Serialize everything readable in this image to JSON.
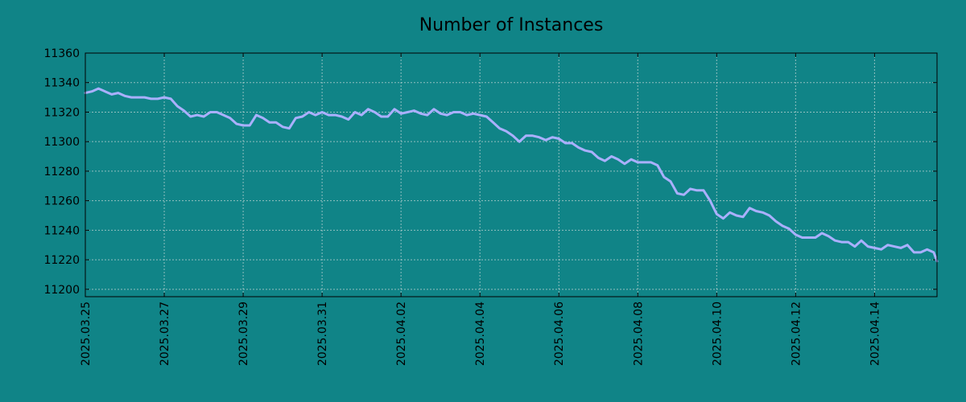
{
  "chart_data": {
    "type": "line",
    "title": "Number of Instances",
    "xlabel": "",
    "ylabel": "",
    "grid": true,
    "xlim": [
      "2025-03-25",
      "2025-04-15T14:00"
    ],
    "ylim": [
      11195,
      11360
    ],
    "yticks": [
      11200,
      11220,
      11240,
      11260,
      11280,
      11300,
      11320,
      11340,
      11360
    ],
    "xticks": [
      "2025.03.25",
      "2025.03.27",
      "2025.03.29",
      "2025.03.31",
      "2025.04.02",
      "2025.04.04",
      "2025.04.06",
      "2025.04.08",
      "2025.04.10",
      "2025.04.12",
      "2025.04.14"
    ],
    "series": [
      {
        "name": "",
        "color": "#aab0ff",
        "x": [
          "2025-03-25T00:00",
          "2025-03-25T04:00",
          "2025-03-25T08:00",
          "2025-03-25T12:00",
          "2025-03-25T16:00",
          "2025-03-25T20:00",
          "2025-03-26T00:00",
          "2025-03-26T04:00",
          "2025-03-26T08:00",
          "2025-03-26T12:00",
          "2025-03-26T16:00",
          "2025-03-26T20:00",
          "2025-03-27T00:00",
          "2025-03-27T04:00",
          "2025-03-27T08:00",
          "2025-03-27T12:00",
          "2025-03-27T16:00",
          "2025-03-27T20:00",
          "2025-03-28T00:00",
          "2025-03-28T04:00",
          "2025-03-28T08:00",
          "2025-03-28T12:00",
          "2025-03-28T16:00",
          "2025-03-28T20:00",
          "2025-03-29T00:00",
          "2025-03-29T04:00",
          "2025-03-29T08:00",
          "2025-03-29T12:00",
          "2025-03-29T16:00",
          "2025-03-29T20:00",
          "2025-03-30T00:00",
          "2025-03-30T04:00",
          "2025-03-30T08:00",
          "2025-03-30T12:00",
          "2025-03-30T16:00",
          "2025-03-30T20:00",
          "2025-03-31T00:00",
          "2025-03-31T04:00",
          "2025-03-31T08:00",
          "2025-03-31T12:00",
          "2025-03-31T16:00",
          "2025-03-31T20:00",
          "2025-04-01T00:00",
          "2025-04-01T04:00",
          "2025-04-01T08:00",
          "2025-04-01T12:00",
          "2025-04-01T16:00",
          "2025-04-01T20:00",
          "2025-04-02T00:00",
          "2025-04-02T04:00",
          "2025-04-02T08:00",
          "2025-04-02T12:00",
          "2025-04-02T16:00",
          "2025-04-02T20:00",
          "2025-04-03T00:00",
          "2025-04-03T04:00",
          "2025-04-03T08:00",
          "2025-04-03T12:00",
          "2025-04-03T16:00",
          "2025-04-03T20:00",
          "2025-04-04T00:00",
          "2025-04-04T04:00",
          "2025-04-04T08:00",
          "2025-04-04T12:00",
          "2025-04-04T16:00",
          "2025-04-04T20:00",
          "2025-04-05T00:00",
          "2025-04-05T04:00",
          "2025-04-05T08:00",
          "2025-04-05T12:00",
          "2025-04-05T16:00",
          "2025-04-05T20:00",
          "2025-04-06T00:00",
          "2025-04-06T04:00",
          "2025-04-06T08:00",
          "2025-04-06T12:00",
          "2025-04-06T16:00",
          "2025-04-06T20:00",
          "2025-04-07T00:00",
          "2025-04-07T04:00",
          "2025-04-07T08:00",
          "2025-04-07T12:00",
          "2025-04-07T16:00",
          "2025-04-07T20:00",
          "2025-04-08T00:00",
          "2025-04-08T04:00",
          "2025-04-08T08:00",
          "2025-04-08T12:00",
          "2025-04-08T16:00",
          "2025-04-08T20:00",
          "2025-04-09T00:00",
          "2025-04-09T04:00",
          "2025-04-09T08:00",
          "2025-04-09T12:00",
          "2025-04-09T16:00",
          "2025-04-09T20:00",
          "2025-04-10T00:00",
          "2025-04-10T04:00",
          "2025-04-10T08:00",
          "2025-04-10T12:00",
          "2025-04-10T16:00",
          "2025-04-10T20:00",
          "2025-04-11T00:00",
          "2025-04-11T04:00",
          "2025-04-11T08:00",
          "2025-04-11T12:00",
          "2025-04-11T16:00",
          "2025-04-11T20:00",
          "2025-04-12T00:00",
          "2025-04-12T04:00",
          "2025-04-12T08:00",
          "2025-04-12T12:00",
          "2025-04-12T16:00",
          "2025-04-12T20:00",
          "2025-04-13T00:00",
          "2025-04-13T04:00",
          "2025-04-13T08:00",
          "2025-04-13T12:00",
          "2025-04-13T16:00",
          "2025-04-13T20:00",
          "2025-04-14T00:00",
          "2025-04-14T04:00",
          "2025-04-14T08:00",
          "2025-04-14T12:00",
          "2025-04-14T16:00",
          "2025-04-14T20:00",
          "2025-04-15T00:00",
          "2025-04-15T04:00",
          "2025-04-15T08:00",
          "2025-04-15T12:00",
          "2025-04-15T14:00"
        ],
        "y": [
          11333,
          11334,
          11336,
          11334,
          11332,
          11333,
          11331,
          11330,
          11330,
          11330,
          11329,
          11329,
          11330,
          11329,
          11324,
          11321,
          11317,
          11318,
          11317,
          11320,
          11320,
          11318,
          11316,
          11312,
          11311,
          11311,
          11318,
          11316,
          11313,
          11313,
          11310,
          11309,
          11316,
          11317,
          11320,
          11318,
          11320,
          11318,
          11318,
          11317,
          11315,
          11320,
          11318,
          11322,
          11320,
          11317,
          11317,
          11322,
          11319,
          11320,
          11321,
          11319,
          11318,
          11322,
          11319,
          11318,
          11320,
          11320,
          11318,
          11319,
          11318,
          11317,
          11313,
          11309,
          11307,
          11304,
          11300,
          11304,
          11304,
          11303,
          11301,
          11303,
          11302,
          11299,
          11299,
          11296,
          11294,
          11293,
          11289,
          11287,
          11290,
          11288,
          11285,
          11288,
          11286,
          11286,
          11286,
          11284,
          11276,
          11273,
          11265,
          11264,
          11268,
          11267,
          11267,
          11260,
          11251,
          11248,
          11252,
          11250,
          11249,
          11255,
          11253,
          11252,
          11250,
          11246,
          11243,
          11241,
          11237,
          11235,
          11235,
          11235,
          11238,
          11236,
          11233,
          11232,
          11232,
          11229,
          11233,
          11229,
          11228,
          11227,
          11230,
          11229,
          11228,
          11230,
          11225,
          11225,
          11227,
          11225,
          11219
        ]
      }
    ]
  }
}
